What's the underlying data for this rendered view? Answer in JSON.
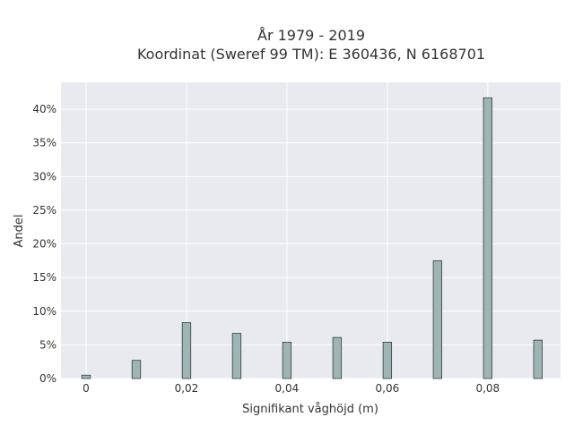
{
  "chart_data": {
    "type": "bar",
    "title_line1": "År 1979 - 2019",
    "title_line2": "Koordinat (Sweref 99 TM): E 360436, N 6168701",
    "xlabel": "Signifikant våghöjd (m)",
    "ylabel": "Andel",
    "x": [
      0,
      0.01,
      0.02,
      0.03,
      0.04,
      0.05,
      0.06,
      0.07,
      0.08,
      0.09
    ],
    "values": [
      0.5,
      2.7,
      8.3,
      6.7,
      5.4,
      6.1,
      5.4,
      17.5,
      41.7,
      5.7
    ],
    "xlim": [
      -0.005,
      0.0945
    ],
    "ylim": [
      0,
      44
    ],
    "xticks": [
      0,
      0.02,
      0.04,
      0.06,
      0.08
    ],
    "xtick_labels": [
      "0",
      "0,02",
      "0,04",
      "0,06",
      "0,08"
    ],
    "yticks": [
      0,
      5,
      10,
      15,
      20,
      25,
      30,
      35,
      40
    ],
    "ytick_labels": [
      "0%",
      "5%",
      "10%",
      "15%",
      "20%",
      "25%",
      "30%",
      "35%",
      "40%"
    ],
    "grid": true,
    "bar_color": "#9fb5b5",
    "bar_edge_color": "#2f3f3f",
    "plot_bg": "#e9e9f0"
  }
}
